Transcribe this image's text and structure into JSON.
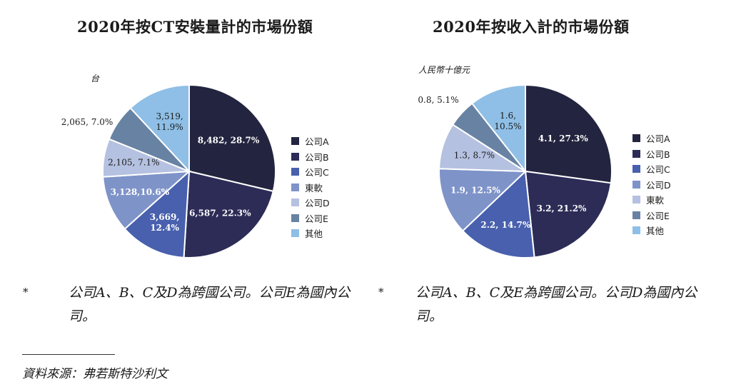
{
  "chart_data": [
    {
      "type": "pie",
      "title": "2020年按CT安裝量計的市場份額",
      "unit_label": "台",
      "series": [
        {
          "name": "公司A",
          "value": 8482,
          "percent": "28.7%",
          "label": "8,482, 28.7%",
          "color": "#23243f"
        },
        {
          "name": "公司B",
          "value": 6587,
          "percent": "22.3%",
          "label": "6,587, 22.3%",
          "color": "#2c2c57"
        },
        {
          "name": "公司C",
          "value": 3669,
          "percent": "12.4%",
          "label": "3,669,\n12.4%",
          "color": "#4860ad"
        },
        {
          "name": "東軟",
          "value": 3128,
          "percent": "10.6%",
          "label": "3,128,10.6%",
          "color": "#7e93c8"
        },
        {
          "name": "公司D",
          "value": 2105,
          "percent": "7.1%",
          "label": "2,105, 7.1%",
          "color": "#b5c1e0"
        },
        {
          "name": "公司E",
          "value": 2065,
          "percent": "7.0%",
          "label": "2,065, 7.0%",
          "color": "#6882a3"
        },
        {
          "name": "其他",
          "value": 3519,
          "percent": "11.9%",
          "label": "3,519,\n11.9%",
          "color": "#8fbfe6"
        }
      ]
    },
    {
      "type": "pie",
      "title": "2020年按收入計的市場份額",
      "unit_label": "人民幣十億元",
      "series": [
        {
          "name": "公司A",
          "value": 4.1,
          "percent": "27.3%",
          "label": "4.1, 27.3%",
          "color": "#23243f"
        },
        {
          "name": "公司B",
          "value": 3.2,
          "percent": "21.2%",
          "label": "3.2, 21.2%",
          "color": "#2c2c57"
        },
        {
          "name": "公司C",
          "value": 2.2,
          "percent": "14.7%",
          "label": "2.2, 14.7%",
          "color": "#4860ad"
        },
        {
          "name": "公司D",
          "value": 1.9,
          "percent": "12.5%",
          "label": "1.9, 12.5%",
          "color": "#7e93c8"
        },
        {
          "name": "東軟",
          "value": 1.3,
          "percent": "8.7%",
          "label": "1.3, 8.7%",
          "color": "#b5c1e0"
        },
        {
          "name": "公司E",
          "value": 0.8,
          "percent": "5.1%",
          "label": "0.8, 5.1%",
          "color": "#6882a3"
        },
        {
          "name": "其他",
          "value": 1.6,
          "percent": "10.5%",
          "label": "1.6,\n10.5%",
          "color": "#8fbfe6"
        }
      ]
    }
  ],
  "notes": {
    "left_marker": "*",
    "left": "公司A、B、C及D為跨國公司。公司E為國內公司。",
    "right_marker": "*",
    "right": "公司A、B、C及E為跨國公司。公司D為國內公司。"
  },
  "source": "資料來源：弗若斯特沙利文"
}
